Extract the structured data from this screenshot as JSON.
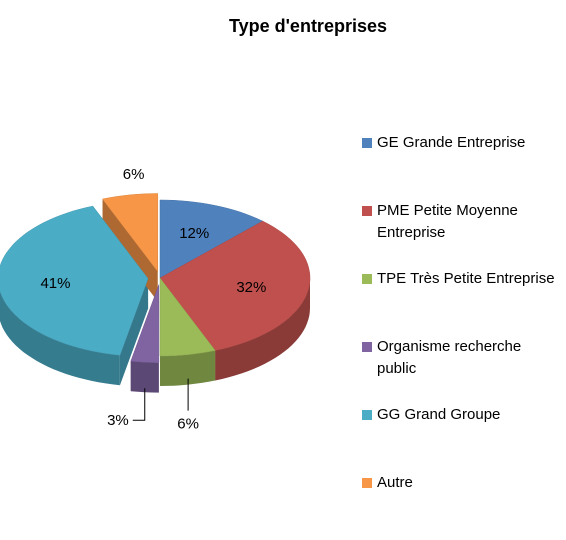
{
  "chart_data": {
    "type": "pie",
    "title": "Type d'entreprises",
    "categories": [
      "GE Grande Entreprise",
      "PME Petite Moyenne Entreprise",
      "TPE Très Petite Entreprise",
      "Organisme recherche public",
      "GG Grand Groupe",
      "Autre"
    ],
    "values": [
      12,
      32,
      6,
      3,
      41,
      6
    ],
    "value_labels": [
      "12%",
      "32%",
      "6%",
      "3%",
      "41%",
      "6%"
    ],
    "colors": [
      "#4f81bd",
      "#c0504d",
      "#9bbb59",
      "#8064a2",
      "#4bacc6",
      "#f79646"
    ],
    "legend": "right"
  }
}
